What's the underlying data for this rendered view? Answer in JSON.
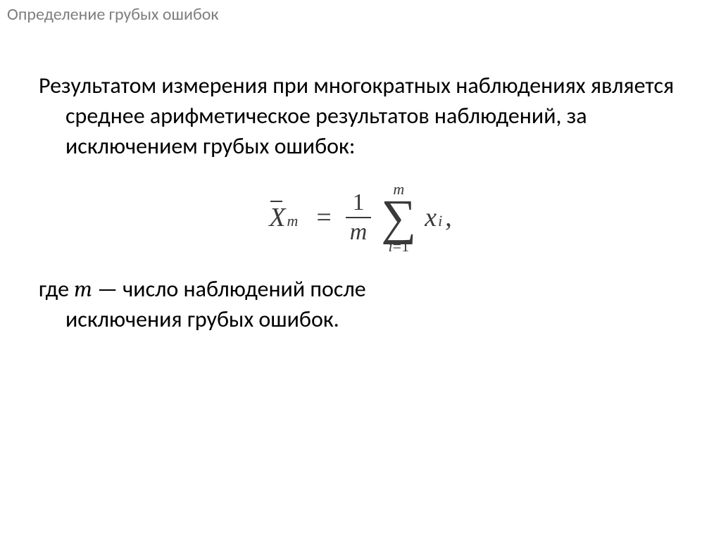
{
  "slide": {
    "title": "Определение грубых ошибок",
    "title_color": "#7f7f7f",
    "title_fontsize": 24,
    "background_color": "#ffffff"
  },
  "body": {
    "paragraph1": "Результатом измерения при многократных наблюдениях является среднее арифметическое результатов наблюдений, за исключением грубых ошибок:",
    "paragraph2_prefix": "где ",
    "paragraph2_var": "m",
    "paragraph2_mid": " — число наблюдений после",
    "paragraph2_line2": "исключения грубых ошибок.",
    "body_fontsize": 32,
    "body_color": "#000000"
  },
  "formula": {
    "lhs_symbol": "X",
    "lhs_subscript": "m",
    "lhs_overbar": true,
    "equals": "=",
    "fraction_num": "1",
    "fraction_den": "m",
    "sum_symbol": "∑",
    "sum_upper": "m",
    "sum_lower_index": "i",
    "sum_lower_eq": "=",
    "sum_lower_start": "1",
    "term_symbol": "x",
    "term_subscript": "i",
    "trailing": ",",
    "font_family": "Cambria Math",
    "color": "#3a3a3a",
    "base_fontsize": 38,
    "sigma_fontsize": 70,
    "subscript_fontsize": 22
  }
}
